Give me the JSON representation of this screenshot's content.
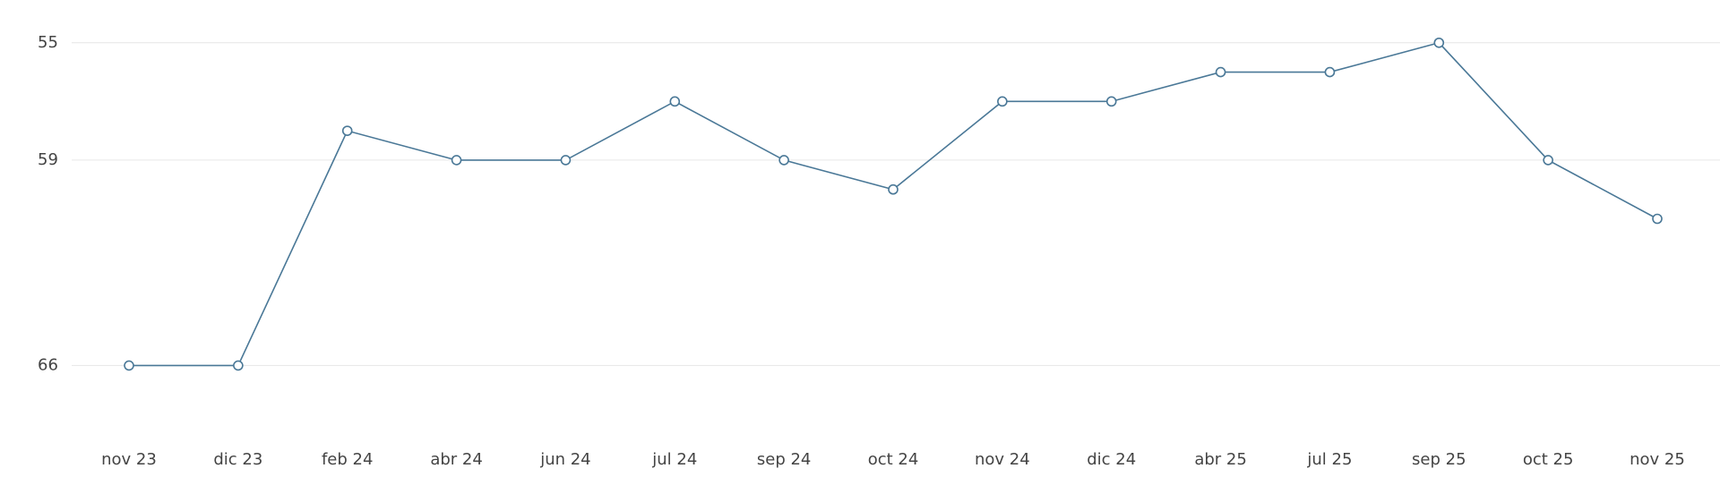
{
  "chart_data": {
    "type": "line",
    "categories": [
      "nov 23",
      "dic 23",
      "feb 24",
      "abr 24",
      "jun 24",
      "jul 24",
      "sep 24",
      "oct 24",
      "nov 24",
      "dic 24",
      "abr 25",
      "jul 25",
      "sep 25",
      "oct 25",
      "nov 25"
    ],
    "values": [
      66,
      66,
      58,
      59,
      59,
      57,
      59,
      60,
      57,
      57,
      56,
      56,
      55,
      59,
      61
    ],
    "color": "#4a7897",
    "ylim": [
      68,
      54
    ],
    "yticks": [
      55,
      59,
      66
    ],
    "grid": true
  }
}
